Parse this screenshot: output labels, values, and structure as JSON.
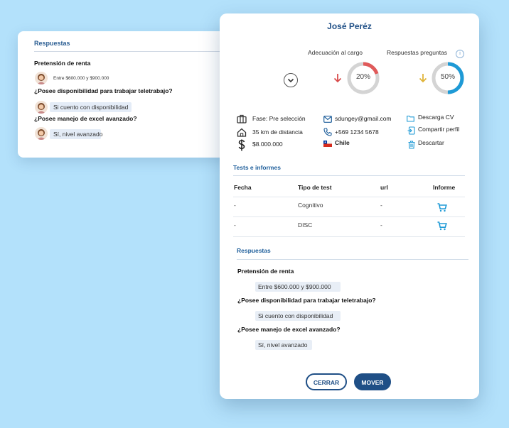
{
  "background_card": {
    "section_title": "Respuestas",
    "items": [
      {
        "question": "Pretensión de renta",
        "answer": "Entre $600.000 y $900.000"
      },
      {
        "question": "¿Posee disponibilidad para trabajar teletrabajo?",
        "answer": "Si cuento con disponibilidad"
      },
      {
        "question": "¿Posee manejo de excel avanzado?",
        "answer": "Sí, nivel avanzado"
      }
    ]
  },
  "candidate": {
    "name": "José Peréz",
    "gauges": [
      {
        "label": "Adecuación al cargo",
        "value_text": "20%",
        "value": 20,
        "color": "#e05a5a",
        "arrow_color": "#d84b4b"
      },
      {
        "label": "Respuestas preguntas",
        "value_text": "50%",
        "value": 50,
        "color": "#1e9ad6",
        "arrow_color": "#e0b43a"
      }
    ],
    "info": {
      "phase": "Fase: Pre selección",
      "distance": "35 km de distancia",
      "salary": "$8.000.000",
      "email": "sdungey@gmail.com",
      "phone": "+569 1234 5678",
      "country": "Chile"
    },
    "actions": [
      "Descarga CV",
      "Compartir perfil",
      "Descartar"
    ]
  },
  "tests": {
    "title": "Tests e informes",
    "headers": [
      "Fecha",
      "Tipo de test",
      "url",
      "Informe"
    ],
    "rows": [
      {
        "fecha": "-",
        "tipo": "Cognitivo",
        "url": "-"
      },
      {
        "fecha": "-",
        "tipo": "DISC",
        "url": "-"
      }
    ]
  },
  "responses": {
    "title": "Respuestas",
    "items": [
      {
        "question": "Pretensión de renta",
        "answer": "Entre $600.000 y $900.000"
      },
      {
        "question": "¿Posee disponibilidad para trabajar teletrabajo?",
        "answer": "Si cuento con disponibilidad"
      },
      {
        "question": "¿Posee manejo de excel avanzado?",
        "answer": "Sí, nivel avanzado"
      }
    ]
  },
  "buttons": {
    "close": "CERRAR",
    "move": "MOVER"
  },
  "colors": {
    "brand": "#1f4f86",
    "accent": "#1e9ad6",
    "background": "#b3e1fb"
  },
  "icons": [
    "briefcase-icon",
    "home-icon",
    "dollar-icon",
    "mail-icon",
    "phone-icon",
    "chile-flag-icon",
    "folder-icon",
    "share-icon",
    "trash-icon",
    "cart-icon",
    "chevron-down-icon",
    "info-icon"
  ]
}
